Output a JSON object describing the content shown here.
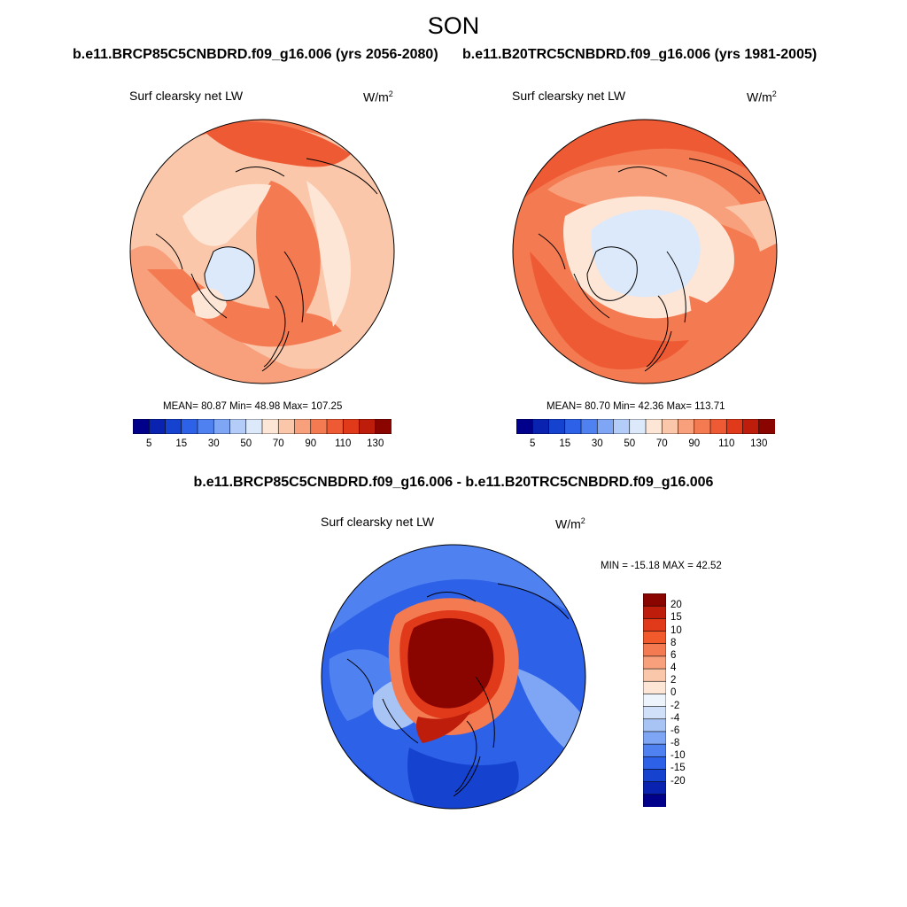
{
  "season": "SON",
  "left_panel": {
    "case": "b.e11.BRCP85C5CNBDRD.f09_g16.006 (yrs 2056-2080)",
    "variable": "Surf clearsky net LW",
    "units_base": "W/m",
    "units_exp": "2",
    "stats": "MEAN=  80.87  Min=  48.98  Max= 107.25"
  },
  "right_panel": {
    "case": "b.e11.B20TRC5CNBDRD.f09_g16.006 (yrs 1981-2005)",
    "variable": "Surf clearsky net LW",
    "units_base": "W/m",
    "units_exp": "2",
    "stats": "MEAN=  80.70  Min=  42.36  Max= 113.71"
  },
  "abs_colorbar": {
    "colors": [
      "#00008a",
      "#0a22b0",
      "#1543cf",
      "#2d62e8",
      "#4f81f0",
      "#7fa5f5",
      "#b3cdf8",
      "#dce9fa",
      "#fde6d6",
      "#fbc7aa",
      "#f8a07c",
      "#f47a52",
      "#ee5a33",
      "#e03a1a",
      "#bd1d0a",
      "#8a0500"
    ],
    "labels": [
      "5",
      "15",
      "30",
      "50",
      "70",
      "90",
      "110",
      "130"
    ]
  },
  "diff_panel": {
    "title": "b.e11.BRCP85C5CNBDRD.f09_g16.006 - b.e11.B20TRC5CNBDRD.f09_g16.006",
    "variable": "Surf clearsky net LW",
    "units_base": "W/m",
    "units_exp": "2",
    "minmax": "MIN = -15.18 MAX =  42.52"
  },
  "diff_colorbar": {
    "colors": [
      "#8a0500",
      "#bd1d0a",
      "#e03a1a",
      "#f25a2c",
      "#f47a52",
      "#f8a07c",
      "#fbc7aa",
      "#fde6d6",
      "#eef4fb",
      "#cfe0f8",
      "#a8c4f5",
      "#7fa5f5",
      "#4f81f0",
      "#2d62e8",
      "#1543cf",
      "#0a22b0",
      "#00008a"
    ],
    "labels": [
      "20",
      "15",
      "10",
      "8",
      "6",
      "4",
      "2",
      "0",
      "-2",
      "-4",
      "-6",
      "-8",
      "-10",
      "-15",
      "-20"
    ]
  }
}
